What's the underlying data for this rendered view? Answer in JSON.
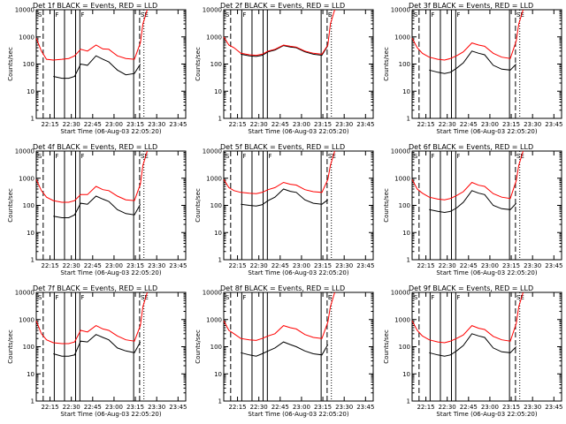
{
  "chart_data": {
    "type": "line",
    "y_scale": "log",
    "ylim": [
      1,
      10000
    ],
    "y_ticks": [
      "1",
      "10",
      "100",
      "1000",
      "10000"
    ],
    "x_ticks": [
      "22:15",
      "22:30",
      "22:45",
      "23:00",
      "23:15",
      "23:30",
      "23:45"
    ],
    "xlabel": "Start Time (06-Aug-03 22:05:20)",
    "ylabel": "Counts/sec",
    "legend": {
      "black": "Events",
      "red": "LLD"
    },
    "colors": {
      "events": "#000000",
      "lld": "#ff0000",
      "axes": "#000000"
    },
    "profile_hours": [
      0.0,
      0.06,
      0.12,
      0.2,
      0.3,
      0.38,
      0.45,
      0.52,
      0.6,
      0.7,
      0.78,
      0.85,
      0.95,
      1.05,
      1.15,
      1.22,
      1.25,
      1.3
    ],
    "panels": [
      {
        "title": "Det 1f BLACK = Events, RED = LLD",
        "flags": [
          "S",
          "F",
          "F",
          "SE"
        ],
        "lld": [
          900,
          300,
          150,
          140,
          150,
          160,
          200,
          350,
          300,
          500,
          360,
          350,
          200,
          160,
          150,
          600,
          3000,
          10000
        ],
        "events": [
          null,
          null,
          null,
          35,
          30,
          30,
          35,
          100,
          90,
          200,
          150,
          120,
          60,
          40,
          45,
          100,
          null,
          null
        ]
      },
      {
        "title": "Det 2f BLACK = Events, RED = LLD",
        "flags": [
          "S",
          "F",
          "",
          "E"
        ],
        "lld": [
          1000,
          500,
          400,
          250,
          220,
          210,
          230,
          300,
          350,
          500,
          450,
          420,
          300,
          250,
          230,
          500,
          3000,
          10000
        ],
        "events": [
          null,
          null,
          null,
          230,
          200,
          190,
          210,
          280,
          330,
          480,
          420,
          400,
          280,
          230,
          210,
          480,
          null,
          null
        ]
      },
      {
        "title": "Det 3f BLACK = Events, RED = LLD",
        "flags": [
          "S",
          "F",
          "F",
          "SE"
        ],
        "lld": [
          900,
          400,
          250,
          180,
          150,
          140,
          160,
          200,
          280,
          600,
          500,
          450,
          250,
          180,
          160,
          700,
          3000,
          10000
        ],
        "events": [
          null,
          null,
          null,
          60,
          50,
          45,
          50,
          70,
          110,
          300,
          250,
          220,
          90,
          65,
          60,
          100,
          null,
          null
        ]
      },
      {
        "title": "Det 4f BLACK = Events, RED = LLD",
        "flags": [
          "S",
          "F",
          "F",
          "SE"
        ],
        "lld": [
          900,
          350,
          200,
          150,
          130,
          130,
          150,
          250,
          250,
          500,
          380,
          350,
          220,
          160,
          150,
          600,
          3000,
          10000
        ],
        "events": [
          null,
          null,
          null,
          40,
          35,
          35,
          45,
          120,
          110,
          220,
          170,
          140,
          70,
          50,
          45,
          110,
          null,
          null
        ]
      },
      {
        "title": "Det 5f BLACK = Events, RED = LLD",
        "flags": [
          "S",
          "F",
          "F",
          "SE"
        ],
        "lld": [
          900,
          450,
          350,
          300,
          280,
          270,
          300,
          380,
          450,
          700,
          600,
          560,
          380,
          320,
          300,
          900,
          3000,
          10000
        ],
        "events": [
          null,
          null,
          null,
          110,
          100,
          95,
          105,
          150,
          200,
          400,
          330,
          300,
          160,
          120,
          110,
          160,
          null,
          null
        ]
      },
      {
        "title": "Det 6f BLACK = Events, RED = LLD",
        "flags": [
          "S",
          "F",
          "F",
          "SE"
        ],
        "lld": [
          900,
          400,
          280,
          200,
          170,
          160,
          180,
          230,
          320,
          700,
          550,
          500,
          270,
          200,
          180,
          800,
          3000,
          10000
        ],
        "events": [
          null,
          null,
          null,
          70,
          60,
          55,
          60,
          80,
          130,
          350,
          280,
          250,
          100,
          75,
          70,
          120,
          null,
          null
        ]
      },
      {
        "title": "Det 7f BLACK = Events, RED = LLD",
        "flags": [
          "S",
          "F",
          "F",
          "SE"
        ],
        "lld": [
          900,
          300,
          180,
          140,
          130,
          130,
          150,
          400,
          350,
          600,
          450,
          400,
          250,
          180,
          160,
          600,
          3000,
          10000
        ],
        "events": [
          null,
          null,
          null,
          55,
          45,
          45,
          50,
          160,
          150,
          280,
          220,
          180,
          90,
          70,
          60,
          150,
          null,
          null
        ]
      },
      {
        "title": "Det 8f BLACK = Events, RED = LLD",
        "flags": [
          "S",
          "F",
          "",
          "E"
        ],
        "lld": [
          900,
          400,
          300,
          200,
          180,
          170,
          200,
          250,
          300,
          600,
          500,
          450,
          280,
          220,
          200,
          800,
          3000,
          10000
        ],
        "events": [
          null,
          null,
          null,
          60,
          50,
          45,
          55,
          70,
          90,
          150,
          120,
          100,
          70,
          55,
          50,
          120,
          null,
          null
        ]
      },
      {
        "title": "Det 9f BLACK = Events, RED = LLD",
        "flags": [
          "S",
          "F",
          "F",
          "SE"
        ],
        "lld": [
          900,
          400,
          250,
          180,
          150,
          140,
          160,
          200,
          270,
          600,
          480,
          430,
          240,
          180,
          160,
          700,
          3000,
          10000
        ],
        "events": [
          null,
          null,
          null,
          60,
          50,
          45,
          50,
          70,
          110,
          300,
          250,
          220,
          90,
          65,
          60,
          100,
          null,
          null
        ]
      }
    ]
  }
}
